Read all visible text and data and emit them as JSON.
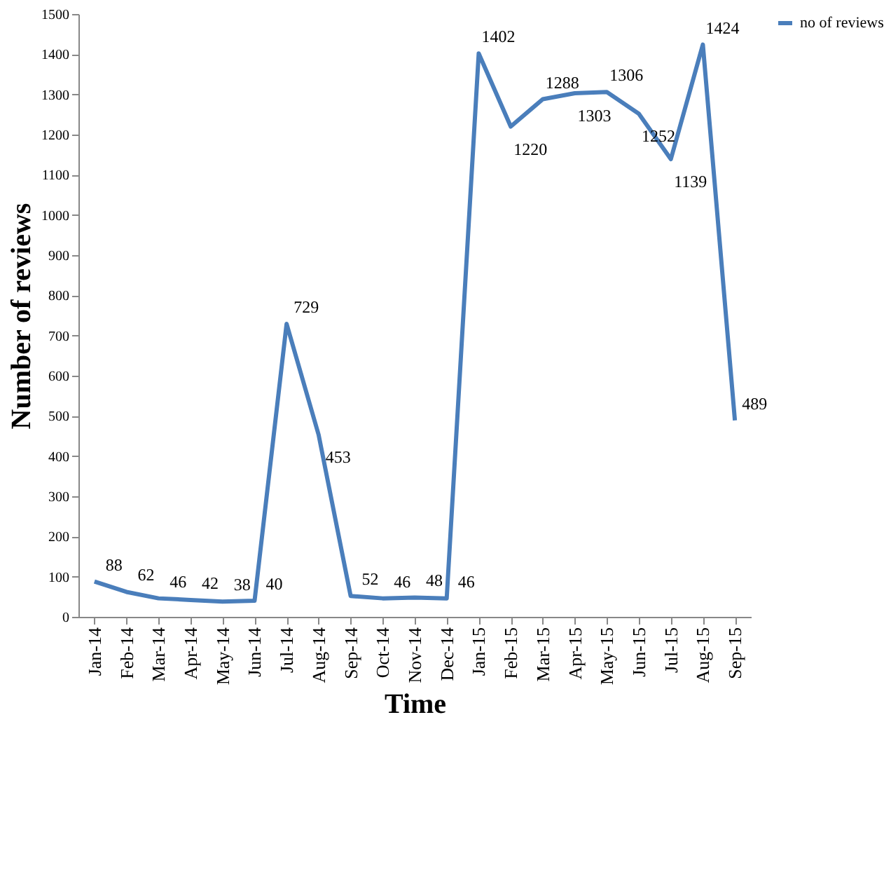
{
  "chart_data": {
    "type": "line",
    "xlabel": "Time",
    "ylabel": "Number of reviews",
    "categories": [
      "Jan-14",
      "Feb-14",
      "Mar-14",
      "Apr-14",
      "May-14",
      "Jun-14",
      "Jul-14",
      "Aug-14",
      "Sep-14",
      "Oct-14",
      "Nov-14",
      "Dec-14",
      "Jan-15",
      "Feb-15",
      "Mar-15",
      "Apr-15",
      "May-15",
      "Jun-15",
      "Jul-15",
      "Aug-15",
      "Sep-15"
    ],
    "series": [
      {
        "name": "no of reviews",
        "color": "#4a7ebb",
        "values": [
          88,
          62,
          46,
          42,
          38,
          40,
          729,
          453,
          52,
          46,
          48,
          46,
          1402,
          1220,
          1288,
          1303,
          1306,
          1252,
          1139,
          1424,
          489
        ]
      }
    ],
    "ylim": [
      0,
      1500
    ],
    "yticks": [
      0,
      100,
      200,
      300,
      400,
      500,
      600,
      700,
      800,
      900,
      1000,
      1100,
      1200,
      1300,
      1400,
      1500
    ],
    "data_labels": true,
    "grid": false,
    "legend": "right",
    "marker": "none",
    "line_style": "solid"
  }
}
